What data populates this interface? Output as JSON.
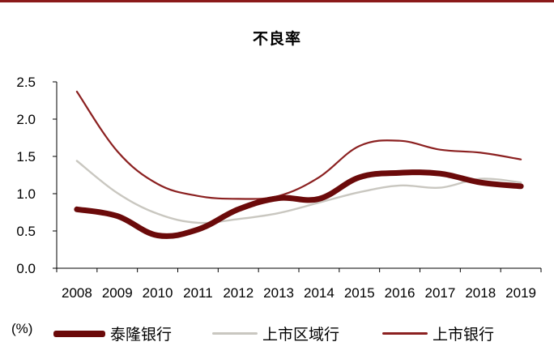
{
  "colors": {
    "brand_rule": "#8b1a1a",
    "axis": "#000000"
  },
  "chart_data": {
    "type": "line",
    "title": "不良率",
    "xlabel": "",
    "ylabel": "",
    "unit_label": "(%)",
    "categories": [
      "2008",
      "2009",
      "2010",
      "2011",
      "2012",
      "2013",
      "2014",
      "2015",
      "2016",
      "2017",
      "2018",
      "2019"
    ],
    "ylim": [
      0,
      2.5
    ],
    "yticks": [
      "0.0",
      "0.5",
      "1.0",
      "1.5",
      "2.0",
      "2.5"
    ],
    "grid": false,
    "legend_position": "bottom",
    "series": [
      {
        "name": "泰隆银行",
        "color": "#6b0a0a",
        "stroke": "thick",
        "values": [
          0.79,
          0.7,
          0.44,
          0.52,
          0.79,
          0.94,
          0.93,
          1.22,
          1.28,
          1.27,
          1.15,
          1.1
        ]
      },
      {
        "name": "上市区域行",
        "color": "#c9c7c0",
        "stroke": "thin",
        "values": [
          1.44,
          1.01,
          0.73,
          0.61,
          0.66,
          0.74,
          0.88,
          1.02,
          1.11,
          1.08,
          1.2,
          1.15
        ]
      },
      {
        "name": "上市银行",
        "color": "#8b2020",
        "stroke": "thin",
        "values": [
          2.37,
          1.57,
          1.13,
          0.97,
          0.93,
          0.97,
          1.22,
          1.64,
          1.71,
          1.59,
          1.55,
          1.46
        ]
      }
    ]
  }
}
